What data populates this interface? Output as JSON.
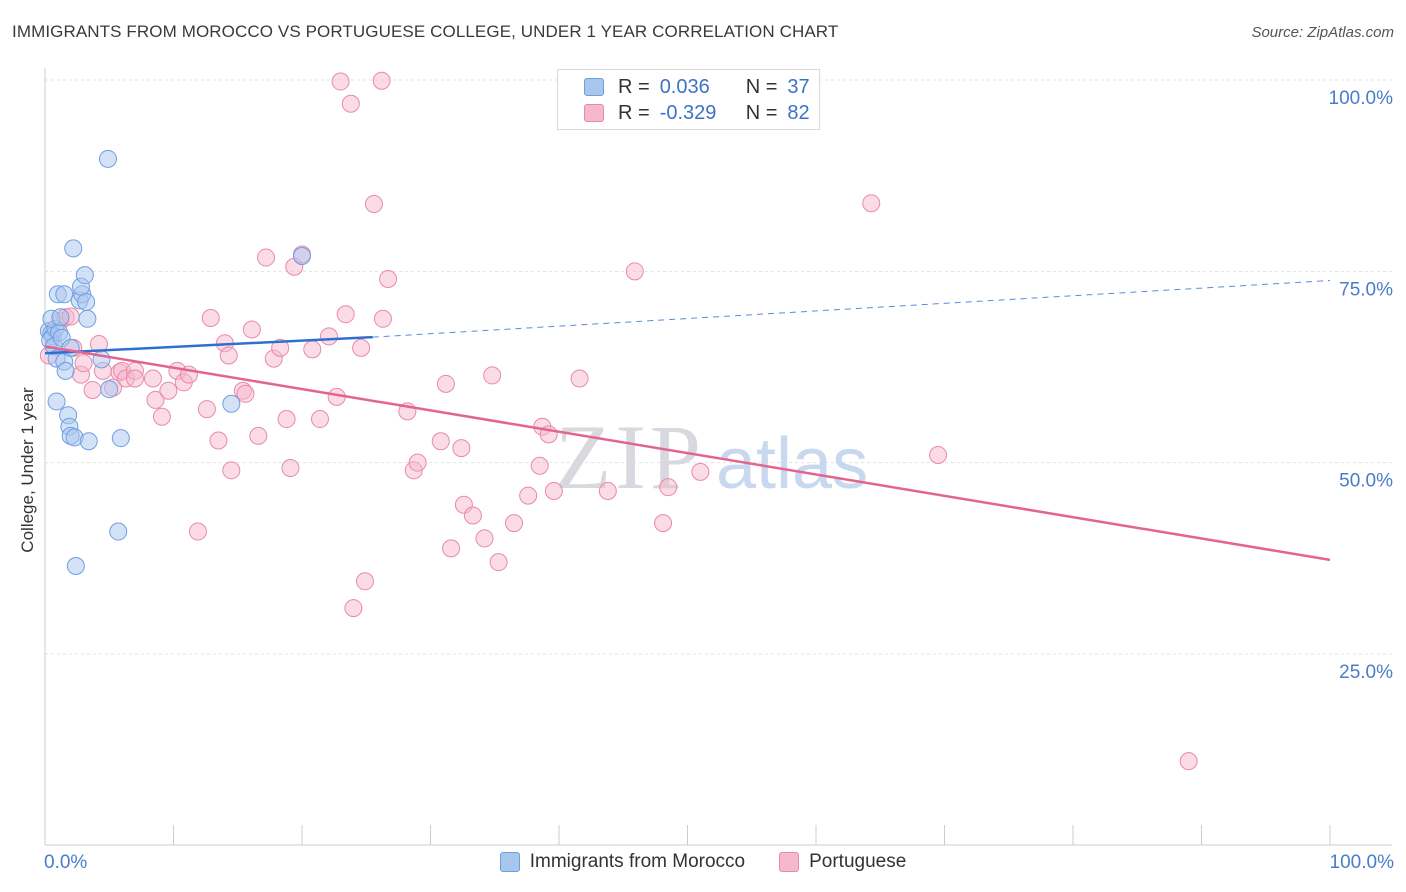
{
  "header": {
    "title": "IMMIGRANTS FROM MOROCCO VS PORTUGUESE COLLEGE, UNDER 1 YEAR CORRELATION CHART",
    "source": "Source: ZipAtlas.com"
  },
  "watermark": {
    "zip": "ZIP",
    "atlas": "atlas"
  },
  "colors": {
    "blue_fill": "#a9c6ef",
    "blue_stroke": "#6f9fe0",
    "blue_line": "#2f6fd0",
    "pink_fill": "#f6b8cd",
    "pink_stroke": "#e98aab",
    "pink_line": "#e2648f",
    "axis_text": "#4a7cc9",
    "grid": "#dfe3ea"
  },
  "legend": {
    "rows": [
      {
        "r_label": "R =",
        "r_value": "0.036",
        "n_label": "N =",
        "n_value": "37"
      },
      {
        "r_label": "R =",
        "r_value": "-0.329",
        "n_label": "N =",
        "n_value": "82"
      }
    ]
  },
  "bottom_legend": {
    "items": [
      {
        "label": "Immigrants from Morocco"
      },
      {
        "label": "Portuguese"
      }
    ]
  },
  "chart_data": {
    "type": "scatter",
    "title": "IMMIGRANTS FROM MOROCCO VS PORTUGUESE COLLEGE, UNDER 1 YEAR CORRELATION CHART",
    "xlabel": "",
    "ylabel": "College, Under 1 year",
    "xlim": [
      0,
      100
    ],
    "ylim": [
      5,
      102
    ],
    "x_tick_labels": [
      "0.0%",
      "100.0%"
    ],
    "y_ticks": [
      25,
      50,
      75,
      100
    ],
    "y_tick_labels": [
      "25.0%",
      "50.0%",
      "75.0%",
      "100.0%"
    ],
    "grid": true,
    "legend_position": "top-center",
    "series": [
      {
        "name": "Immigrants from Morocco",
        "r": 0.036,
        "n": 37,
        "trend": {
          "x0": 0,
          "y0": 64.3,
          "x1": 25.5,
          "y1": 66.4,
          "dashed_to_x": 100,
          "dashed_to_y": 73.8
        },
        "points": [
          [
            0.3,
            67.2
          ],
          [
            0.5,
            66.9
          ],
          [
            0.6,
            66.5
          ],
          [
            0.4,
            66.0
          ],
          [
            0.8,
            67.5
          ],
          [
            0.7,
            65.2
          ],
          [
            0.5,
            68.8
          ],
          [
            1.1,
            67.0
          ],
          [
            1.3,
            66.3
          ],
          [
            0.9,
            63.6
          ],
          [
            1.5,
            63.2
          ],
          [
            1.6,
            62.0
          ],
          [
            2.0,
            65.0
          ],
          [
            1.0,
            72.0
          ],
          [
            1.5,
            72.0
          ],
          [
            2.7,
            71.2
          ],
          [
            2.9,
            72.0
          ],
          [
            3.2,
            71.0
          ],
          [
            2.8,
            73.0
          ],
          [
            3.1,
            74.5
          ],
          [
            2.2,
            78.0
          ],
          [
            3.3,
            68.8
          ],
          [
            4.4,
            63.5
          ],
          [
            5.0,
            59.6
          ],
          [
            1.8,
            56.2
          ],
          [
            1.9,
            54.7
          ],
          [
            2.0,
            53.5
          ],
          [
            2.3,
            53.3
          ],
          [
            3.4,
            52.8
          ],
          [
            5.9,
            53.2
          ],
          [
            0.9,
            58.0
          ],
          [
            2.4,
            36.5
          ],
          [
            5.7,
            41.0
          ],
          [
            4.9,
            89.7
          ],
          [
            14.5,
            57.7
          ],
          [
            20.0,
            77.0
          ],
          [
            1.2,
            69.0
          ]
        ]
      },
      {
        "name": "Portuguese",
        "r": -0.329,
        "n": 82,
        "trend": {
          "x0": 0,
          "y0": 65.2,
          "x1": 100,
          "y1": 37.3
        },
        "points": [
          [
            0.3,
            64.0
          ],
          [
            1.2,
            68.5
          ],
          [
            1.6,
            69.0
          ],
          [
            2.2,
            65.0
          ],
          [
            2.8,
            61.5
          ],
          [
            3.0,
            63.0
          ],
          [
            3.7,
            59.5
          ],
          [
            4.2,
            65.5
          ],
          [
            4.5,
            62.0
          ],
          [
            5.3,
            59.8
          ],
          [
            5.8,
            61.8
          ],
          [
            6.0,
            62.0
          ],
          [
            6.3,
            61.0
          ],
          [
            7.0,
            62.0
          ],
          [
            8.4,
            61.0
          ],
          [
            8.6,
            58.2
          ],
          [
            9.1,
            56.0
          ],
          [
            9.6,
            59.4
          ],
          [
            10.3,
            62.0
          ],
          [
            10.8,
            60.5
          ],
          [
            11.2,
            61.5
          ],
          [
            12.6,
            57.0
          ],
          [
            12.9,
            68.9
          ],
          [
            13.5,
            52.9
          ],
          [
            14.0,
            65.6
          ],
          [
            14.3,
            64.0
          ],
          [
            14.5,
            49.0
          ],
          [
            15.4,
            59.4
          ],
          [
            15.6,
            59.0
          ],
          [
            16.1,
            67.4
          ],
          [
            16.6,
            53.5
          ],
          [
            17.2,
            76.8
          ],
          [
            17.8,
            63.6
          ],
          [
            18.3,
            65.0
          ],
          [
            18.8,
            55.7
          ],
          [
            19.1,
            49.3
          ],
          [
            19.4,
            75.6
          ],
          [
            20.8,
            64.8
          ],
          [
            21.4,
            55.7
          ],
          [
            22.1,
            66.5
          ],
          [
            22.7,
            58.6
          ],
          [
            23.4,
            69.4
          ],
          [
            24.6,
            65.0
          ],
          [
            25.6,
            83.8
          ],
          [
            26.3,
            68.8
          ],
          [
            26.7,
            74.0
          ],
          [
            28.2,
            56.7
          ],
          [
            28.7,
            49.0
          ],
          [
            29.0,
            50.0
          ],
          [
            30.8,
            52.8
          ],
          [
            31.2,
            60.3
          ],
          [
            31.6,
            38.8
          ],
          [
            32.4,
            51.9
          ],
          [
            32.6,
            44.5
          ],
          [
            33.3,
            43.1
          ],
          [
            34.2,
            40.1
          ],
          [
            34.8,
            61.4
          ],
          [
            35.3,
            37.0
          ],
          [
            36.5,
            42.1
          ],
          [
            37.6,
            45.7
          ],
          [
            38.5,
            49.6
          ],
          [
            38.7,
            54.7
          ],
          [
            39.2,
            53.7
          ],
          [
            39.6,
            46.3
          ],
          [
            41.6,
            61.0
          ],
          [
            43.8,
            46.3
          ],
          [
            45.9,
            75.0
          ],
          [
            48.1,
            42.1
          ],
          [
            48.5,
            46.8
          ],
          [
            51.0,
            48.8
          ],
          [
            64.3,
            83.9
          ],
          [
            69.5,
            51.0
          ],
          [
            26.2,
            99.9
          ],
          [
            23.0,
            99.8
          ],
          [
            23.8,
            96.9
          ],
          [
            24.9,
            34.5
          ],
          [
            24.0,
            31.0
          ],
          [
            11.9,
            41.0
          ],
          [
            2.0,
            69.1
          ],
          [
            7.0,
            61.0
          ],
          [
            20.0,
            77.2
          ],
          [
            89.0,
            11.0
          ]
        ]
      }
    ]
  }
}
